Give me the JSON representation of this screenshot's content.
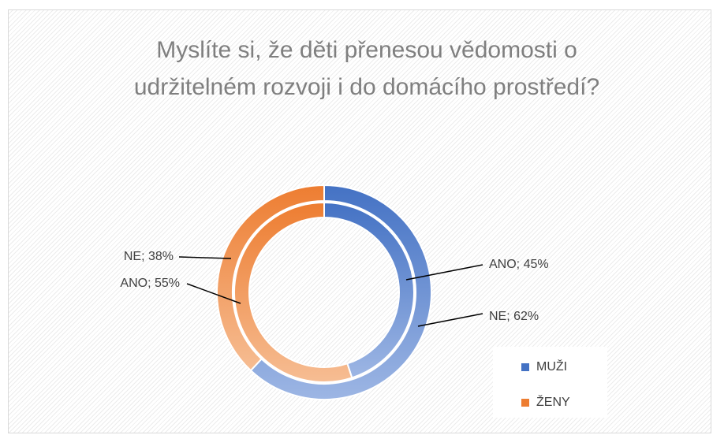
{
  "chart_data": {
    "type": "doughnut",
    "title": "Myslíte si, že děti přenesou vědomosti o udržitelném rozvoji i do domácího prostředí?",
    "categories": [
      "MUŽI",
      "ŽENY"
    ],
    "colors": [
      "#4472c4",
      "#ed7d31"
    ],
    "series": [
      {
        "name": "ANO",
        "values": [
          45,
          55
        ],
        "value_labels": [
          "ANO; 45%",
          "ANO; 55%"
        ]
      },
      {
        "name": "NE",
        "values": [
          62,
          38
        ],
        "value_labels": [
          "NE; 62%",
          "NE; 38%"
        ]
      }
    ],
    "legend": "right"
  }
}
